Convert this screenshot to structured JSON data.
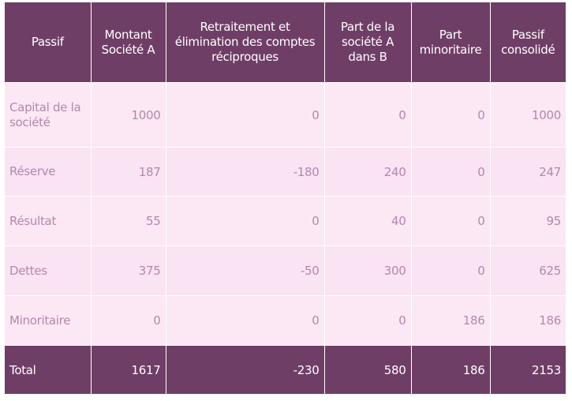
{
  "table": {
    "headers": [
      "Passif",
      "Montant Société A",
      "Retraitement et élimination des comptes réciproques",
      "Part de la société A dans B",
      "Part minoritaire",
      "Passif consolidé"
    ],
    "rows": [
      {
        "label": "Capital de la société",
        "values": [
          "1000",
          "0",
          "0",
          "0",
          "1000"
        ]
      },
      {
        "label": "Réserve",
        "values": [
          "187",
          "-180",
          "240",
          "0",
          "247"
        ]
      },
      {
        "label": "Résultat",
        "values": [
          "55",
          "0",
          "40",
          "0",
          "95"
        ]
      },
      {
        "label": "Dettes",
        "values": [
          "375",
          "-50",
          "300",
          "0",
          "625"
        ]
      },
      {
        "label": "Minoritaire",
        "values": [
          "0",
          "0",
          "0",
          "186",
          "186"
        ]
      }
    ],
    "total": {
      "label": "Total",
      "values": [
        "1617",
        "-230",
        "580",
        "186",
        "2153"
      ]
    }
  },
  "colors": {
    "header_bg": "#6f3e66",
    "row_bg_light": "#fbe8f4",
    "row_bg_alt": "#fae3f3",
    "body_text": "#b487ad",
    "header_text": "#ffffff"
  }
}
